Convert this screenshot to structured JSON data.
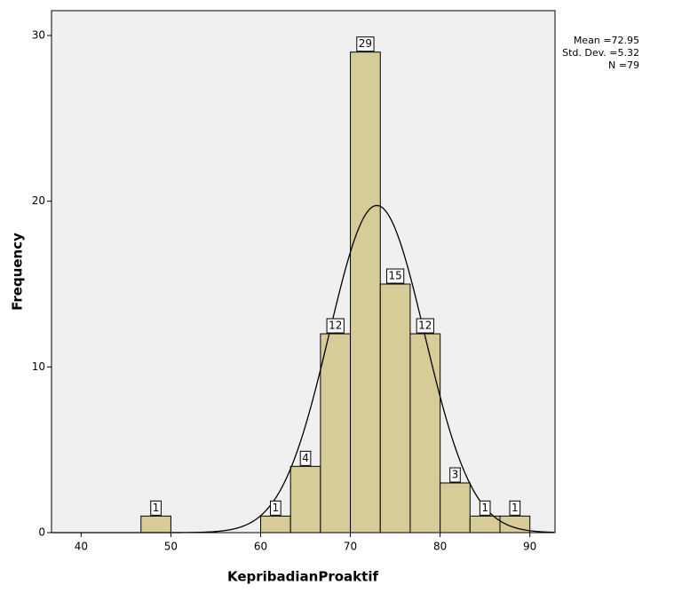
{
  "chart_data": {
    "type": "histogram",
    "x_label": "KepribadianProaktif",
    "y_label": "Frequency",
    "bins": [
      46.667,
      50,
      53.333,
      56.667,
      60,
      63.333,
      66.667,
      70,
      73.333,
      76.667,
      80,
      83.333,
      86.667,
      90
    ],
    "counts": [
      1,
      0,
      0,
      0,
      1,
      4,
      12,
      29,
      15,
      12,
      3,
      1,
      1
    ],
    "color": "#d5cc97",
    "xlim": [
      36.7,
      92.8
    ],
    "xticks": [
      40,
      50,
      60,
      70,
      80,
      90
    ],
    "ylim": [
      0,
      31.5
    ],
    "yticks": [
      0,
      10,
      20,
      30
    ],
    "stats": {
      "mean": {
        "value": 72.95,
        "label": "Mean =72.95"
      },
      "sd": {
        "value": 5.32,
        "label": "Std. Dev. =5.32"
      },
      "n": {
        "value": 79,
        "label": "N =79"
      }
    },
    "normal_curve": true
  }
}
